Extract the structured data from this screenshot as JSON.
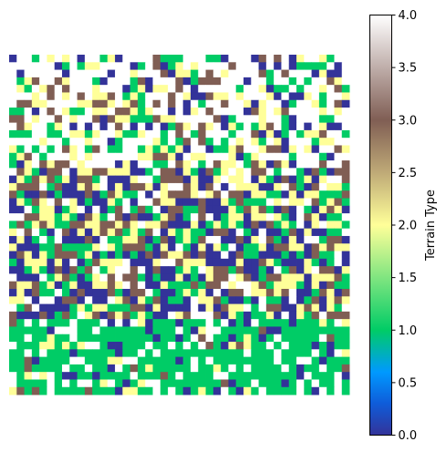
{
  "chart_data": {
    "type": "heatmap",
    "title": "",
    "xlabel": "",
    "ylabel": "",
    "grid": false,
    "rows": 45,
    "cols": 45,
    "colormap": "terrain",
    "colorbar": {
      "label": "Terrain Type",
      "range": [
        0.0,
        4.0
      ],
      "ticks": [
        0.0,
        0.5,
        1.0,
        1.5,
        2.0,
        2.5,
        3.0,
        3.5,
        4.0
      ],
      "tick_labels": [
        "0.0",
        "0.5",
        "1.0",
        "1.5",
        "2.0",
        "2.5",
        "3.0",
        "3.5",
        "4.0"
      ]
    },
    "category_colors": {
      "0": "#333399",
      "1": "#00cc66",
      "2": "#ffff99",
      "3": "#805e54",
      "4": "#ffffff"
    },
    "values": []
  }
}
